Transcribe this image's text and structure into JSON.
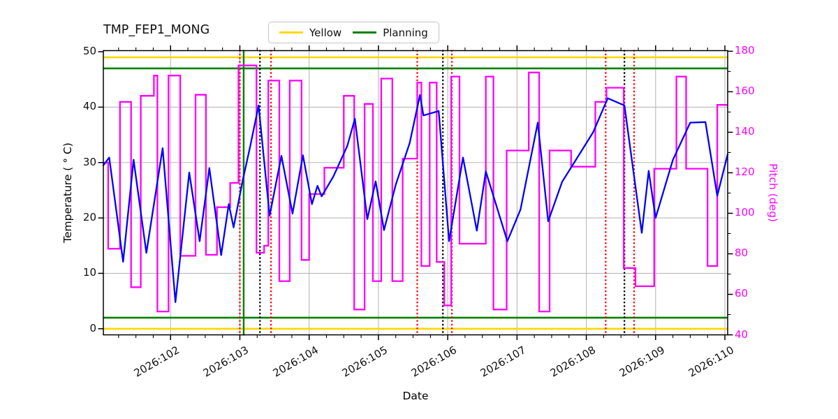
{
  "title": "TMP_FEP1_MONG",
  "legend": [
    {
      "label": "Yellow",
      "color": "#ffd700"
    },
    {
      "label": "Planning",
      "color": "#008000"
    }
  ],
  "chart_data": {
    "type": "line",
    "title": "TMP_FEP1_MONG",
    "xlabel": "Date",
    "ylabel_left": "Temperature ( ° C)",
    "ylabel_right": "Pitch (deg)",
    "grid": true,
    "legend_position": "top-center",
    "xlim": [
      101.03,
      110.04
    ],
    "ylim_left": [
      -1.1,
      50.2
    ],
    "ylim_right": [
      40,
      180.3
    ],
    "x_tick_days": [
      102,
      103,
      104,
      105,
      106,
      107,
      108,
      109,
      110
    ],
    "x_ticks": [
      "2026:102",
      "2026:103",
      "2026:104",
      "2026:105",
      "2026:106",
      "2026:107",
      "2026:108",
      "2026:109",
      "2026:110"
    ],
    "x_minor_step": 0.25,
    "yticks_left": [
      0,
      10,
      20,
      30,
      40,
      50
    ],
    "yticks_right_major": [
      40,
      60,
      80,
      100,
      120,
      140,
      160,
      180
    ],
    "yticks_right_minor_step": 10,
    "colors": {
      "temperature": "#0000ff",
      "pitch": "#ff00ff",
      "yellow_limit": "#ffd700",
      "planning_limit": "#008000",
      "red_event": "#ff0000",
      "black_event": "#000000",
      "green_event": "#008000",
      "grid": "#b8b8b8",
      "spine": "#000000"
    },
    "series": [
      {
        "name": "temperature",
        "axis": "left",
        "style": "line",
        "color": "#0000ff",
        "points": [
          [
            101.03,
            29.5
          ],
          [
            101.115,
            30.9
          ],
          [
            101.315,
            12.1
          ],
          [
            101.466,
            30.5
          ],
          [
            101.651,
            13.7
          ],
          [
            101.886,
            32.6
          ],
          [
            102.07,
            4.8
          ],
          [
            102.27,
            28.2
          ],
          [
            102.42,
            15.8
          ],
          [
            102.56,
            29.0
          ],
          [
            102.73,
            13.3
          ],
          [
            102.84,
            22.5
          ],
          [
            102.91,
            18.3
          ],
          [
            103.04,
            26.7
          ],
          [
            103.15,
            33.0
          ],
          [
            103.27,
            40.3
          ],
          [
            103.43,
            20.4
          ],
          [
            103.6,
            31.2
          ],
          [
            103.76,
            20.8
          ],
          [
            103.91,
            31.3
          ],
          [
            104.04,
            22.5
          ],
          [
            104.12,
            25.8
          ],
          [
            104.18,
            23.9
          ],
          [
            104.35,
            27.5
          ],
          [
            104.55,
            33.0
          ],
          [
            104.66,
            37.9
          ],
          [
            104.84,
            19.8
          ],
          [
            104.96,
            26.6
          ],
          [
            105.08,
            17.8
          ],
          [
            105.25,
            26.0
          ],
          [
            105.45,
            33.5
          ],
          [
            105.6,
            42.2
          ],
          [
            105.65,
            38.5
          ],
          [
            105.87,
            39.3
          ],
          [
            106.02,
            15.8
          ],
          [
            106.22,
            30.9
          ],
          [
            106.42,
            17.7
          ],
          [
            106.55,
            28.4
          ],
          [
            106.86,
            15.8
          ],
          [
            107.05,
            21.5
          ],
          [
            107.3,
            37.2
          ],
          [
            107.45,
            19.4
          ],
          [
            107.65,
            26.5
          ],
          [
            107.9,
            31.5
          ],
          [
            108.1,
            35.5
          ],
          [
            108.31,
            41.6
          ],
          [
            108.55,
            40.3
          ],
          [
            108.8,
            17.3
          ],
          [
            108.9,
            28.5
          ],
          [
            109.0,
            20.0
          ],
          [
            109.25,
            30.5
          ],
          [
            109.5,
            37.2
          ],
          [
            109.72,
            37.3
          ],
          [
            109.89,
            24.0
          ],
          [
            110.04,
            31.5
          ]
        ]
      },
      {
        "name": "pitch",
        "axis": "right",
        "style": "step",
        "color": "#ff00ff",
        "segments": [
          [
            101.03,
            101.1,
            125
          ],
          [
            101.1,
            101.27,
            82.5
          ],
          [
            101.27,
            101.43,
            155
          ],
          [
            101.43,
            101.57,
            63.5
          ],
          [
            101.57,
            101.76,
            158
          ],
          [
            101.76,
            101.81,
            168
          ],
          [
            101.81,
            101.97,
            51.5
          ],
          [
            101.97,
            102.14,
            168
          ],
          [
            102.14,
            102.36,
            79
          ],
          [
            102.36,
            102.51,
            158.5
          ],
          [
            102.51,
            102.67,
            79.5
          ],
          [
            102.67,
            102.86,
            103
          ],
          [
            102.86,
            102.98,
            115
          ],
          [
            102.98,
            103.24,
            173
          ],
          [
            103.24,
            103.35,
            80.5
          ],
          [
            103.35,
            103.41,
            84
          ],
          [
            103.41,
            103.57,
            165.5
          ],
          [
            103.57,
            103.72,
            66.5
          ],
          [
            103.72,
            103.89,
            165.5
          ],
          [
            103.89,
            104.0,
            77
          ],
          [
            104.0,
            104.22,
            109.5
          ],
          [
            104.22,
            104.5,
            122.5
          ],
          [
            104.5,
            104.65,
            158
          ],
          [
            104.65,
            104.8,
            52.5
          ],
          [
            104.8,
            104.92,
            154
          ],
          [
            104.92,
            105.04,
            66.5
          ],
          [
            105.04,
            105.2,
            166.5
          ],
          [
            105.2,
            105.35,
            66.5
          ],
          [
            105.35,
            105.56,
            127
          ],
          [
            105.56,
            105.62,
            164.5
          ],
          [
            105.62,
            105.74,
            74
          ],
          [
            105.74,
            105.84,
            164.5
          ],
          [
            105.84,
            105.95,
            76
          ],
          [
            105.95,
            106.05,
            54.5
          ],
          [
            106.05,
            106.17,
            167.5
          ],
          [
            106.17,
            106.55,
            85
          ],
          [
            106.55,
            106.66,
            167.5
          ],
          [
            106.66,
            106.85,
            52.5
          ],
          [
            106.85,
            107.17,
            131
          ],
          [
            107.17,
            107.32,
            169.5
          ],
          [
            107.32,
            107.47,
            51.5
          ],
          [
            107.47,
            107.78,
            131
          ],
          [
            107.78,
            108.13,
            123
          ],
          [
            108.13,
            108.29,
            155
          ],
          [
            108.29,
            108.54,
            162
          ],
          [
            108.54,
            108.71,
            73
          ],
          [
            108.71,
            108.98,
            64
          ],
          [
            108.98,
            109.3,
            122
          ],
          [
            109.3,
            109.44,
            167.5
          ],
          [
            109.44,
            109.75,
            122
          ],
          [
            109.75,
            109.89,
            74
          ],
          [
            109.89,
            110.04,
            153.5
          ]
        ]
      }
    ],
    "limit_lines": [
      {
        "name": "yellow",
        "color": "#ffd700",
        "axis": "left",
        "values": [
          49,
          0
        ]
      },
      {
        "name": "planning",
        "color": "#008000",
        "axis": "left",
        "values": [
          47,
          2
        ]
      }
    ],
    "event_lines": [
      {
        "name": "red_dotted",
        "color": "#ff0000",
        "style": "dotted",
        "days": [
          103.0,
          103.45,
          105.56,
          106.06,
          108.28,
          108.69
        ]
      },
      {
        "name": "black_dotted",
        "color": "#000000",
        "style": "dotted",
        "days": [
          103.29,
          105.93,
          108.55
        ]
      },
      {
        "name": "green_solid",
        "color": "#008000",
        "style": "solid",
        "days": [
          103.055
        ]
      }
    ]
  }
}
